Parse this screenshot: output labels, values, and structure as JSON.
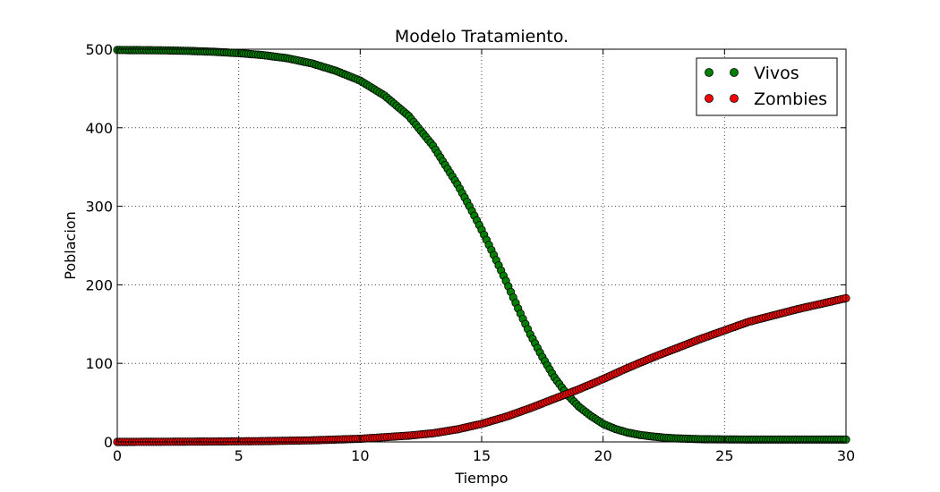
{
  "chart_data": {
    "type": "scatter",
    "title": "Modelo Tratamiento.",
    "xlabel": "Tiempo",
    "ylabel": "Poblacion",
    "xlim": [
      0,
      30
    ],
    "ylim": [
      0,
      500
    ],
    "xticks": [
      0,
      5,
      10,
      15,
      20,
      25,
      30
    ],
    "yticks": [
      0,
      100,
      200,
      300,
      400,
      500
    ],
    "grid": true,
    "legend_position": "top-right",
    "series": [
      {
        "name": "Vivos",
        "color": "#007f00",
        "edge_color": "#000000",
        "x": [
          0,
          1,
          2,
          3,
          4,
          5,
          6,
          7,
          8,
          9,
          10,
          11,
          12,
          13,
          14,
          14.5,
          15,
          15.5,
          16,
          16.5,
          17,
          17.5,
          18,
          18.5,
          19,
          19.5,
          20,
          20.5,
          21,
          21.5,
          22,
          22.5,
          23,
          23.5,
          24,
          25,
          26,
          27,
          28,
          29,
          30
        ],
        "y": [
          499,
          498.8,
          498.5,
          497.8,
          496.7,
          495,
          492.5,
          488.5,
          482,
          472.5,
          460,
          441,
          415,
          377,
          328,
          300,
          270,
          238,
          205,
          170,
          137,
          108,
          82,
          61,
          45,
          33,
          23,
          16.5,
          12,
          9,
          7,
          5.5,
          4.5,
          4,
          3.5,
          3.2,
          3,
          3,
          3,
          3,
          3
        ]
      },
      {
        "name": "Zombies",
        "color": "#ff0000",
        "edge_color": "#000000",
        "x": [
          0,
          2,
          4,
          6,
          8,
          9,
          10,
          11,
          12,
          13,
          14,
          15,
          16,
          17,
          18,
          19,
          20,
          21,
          22,
          23,
          24,
          25,
          26,
          27,
          28,
          29,
          30
        ],
        "y": [
          0,
          0.2,
          0.5,
          1,
          2,
          3,
          4,
          6,
          8,
          11,
          16,
          23,
          32,
          43,
          55,
          67,
          80,
          94,
          107,
          119,
          131,
          142,
          153,
          161,
          169,
          176,
          183
        ]
      }
    ]
  }
}
